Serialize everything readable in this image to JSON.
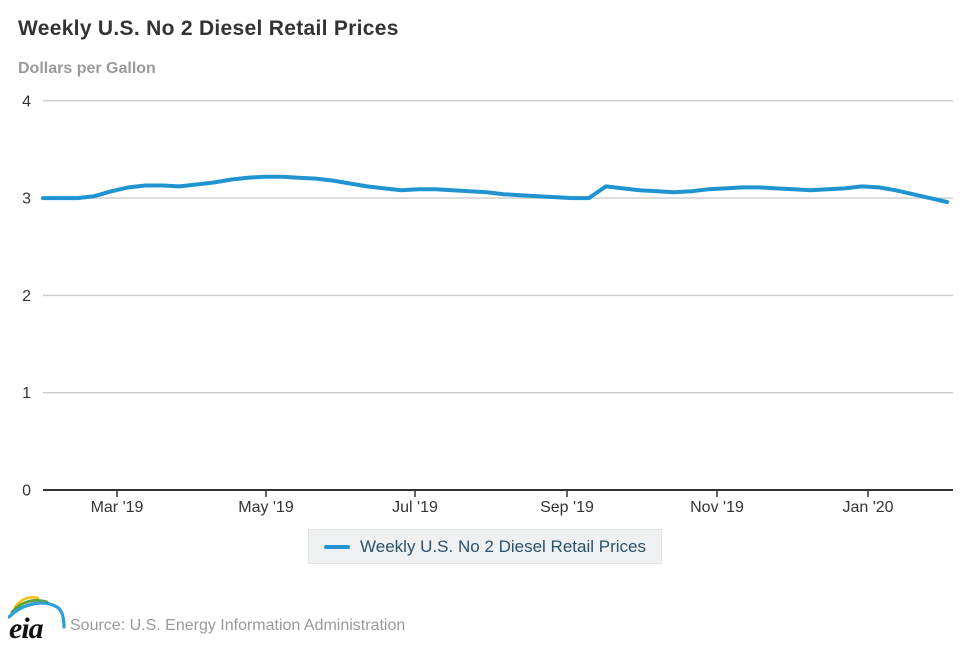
{
  "header": {
    "title": "Weekly U.S. No 2 Diesel Retail Prices",
    "subtitle": "Dollars per Gallon"
  },
  "legend": {
    "label": "Weekly U.S. No 2 Diesel Retail Prices"
  },
  "footer": {
    "logo_text": "eia",
    "source": "Source: U.S. Energy Information Administration"
  },
  "colors": {
    "line": "#2094d1",
    "grid": "#cccccc",
    "axis": "#333333",
    "tick_text": "#333333",
    "title_text": "#333333",
    "muted_text": "#999999",
    "legend_bg": "#eef0f1",
    "legend_text": "#29516d"
  },
  "chart_data": {
    "type": "line",
    "title": "Weekly U.S. No 2 Diesel Retail Prices",
    "ylabel": "Dollars per Gallon",
    "ylim": [
      0,
      4
    ],
    "yticks": [
      0,
      1,
      2,
      3,
      4
    ],
    "xticks": [
      "Mar '19",
      "May '19",
      "Jul '19",
      "Sep '19",
      "Nov '19",
      "Jan '20"
    ],
    "grid": "horizontal",
    "legend_position": "bottom",
    "series": [
      {
        "name": "Weekly U.S. No 2 Diesel Retail Prices",
        "color": "#2094d1",
        "x": [
          "2019-02-04",
          "2019-02-11",
          "2019-02-18",
          "2019-02-25",
          "2019-03-04",
          "2019-03-11",
          "2019-03-18",
          "2019-03-25",
          "2019-04-01",
          "2019-04-08",
          "2019-04-15",
          "2019-04-22",
          "2019-04-29",
          "2019-05-06",
          "2019-05-13",
          "2019-05-20",
          "2019-05-27",
          "2019-06-03",
          "2019-06-10",
          "2019-06-17",
          "2019-06-24",
          "2019-07-01",
          "2019-07-08",
          "2019-07-15",
          "2019-07-22",
          "2019-07-29",
          "2019-08-05",
          "2019-08-12",
          "2019-08-19",
          "2019-08-26",
          "2019-09-02",
          "2019-09-09",
          "2019-09-16",
          "2019-09-23",
          "2019-09-30",
          "2019-10-07",
          "2019-10-14",
          "2019-10-21",
          "2019-10-28",
          "2019-11-04",
          "2019-11-11",
          "2019-11-18",
          "2019-11-25",
          "2019-12-02",
          "2019-12-09",
          "2019-12-16",
          "2019-12-23",
          "2019-12-30",
          "2020-01-06",
          "2020-01-13",
          "2020-01-20",
          "2020-01-27",
          "2020-02-03",
          "2020-02-10"
        ],
        "values": [
          3.0,
          3.0,
          3.0,
          3.02,
          3.07,
          3.11,
          3.13,
          3.13,
          3.12,
          3.14,
          3.16,
          3.19,
          3.21,
          3.22,
          3.22,
          3.21,
          3.2,
          3.18,
          3.15,
          3.12,
          3.1,
          3.08,
          3.09,
          3.09,
          3.08,
          3.07,
          3.06,
          3.04,
          3.03,
          3.02,
          3.01,
          3.0,
          3.0,
          3.12,
          3.1,
          3.08,
          3.07,
          3.06,
          3.07,
          3.09,
          3.1,
          3.11,
          3.11,
          3.1,
          3.09,
          3.08,
          3.09,
          3.1,
          3.12,
          3.11,
          3.08,
          3.04,
          3.0,
          2.96
        ]
      }
    ]
  }
}
